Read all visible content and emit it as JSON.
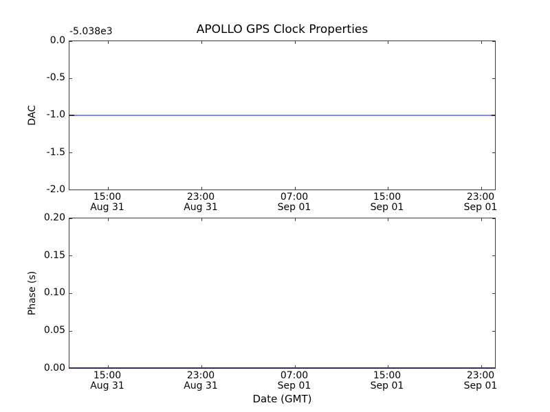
{
  "figure": {
    "title": "APOLLO GPS Clock Properties",
    "background": "#ffffff"
  },
  "top_plot": {
    "ylabel": "DAC",
    "offset_text": "-5.038e3",
    "yticks": [
      "0.0",
      "-0.5",
      "-1.0",
      "-1.5",
      "-2.0"
    ],
    "line_color": "#0000ff",
    "line_value": -1.0
  },
  "bottom_plot": {
    "ylabel": "Phase (s)",
    "xlabel": "Date (GMT)",
    "yticks": [
      "0.20",
      "0.15",
      "0.10",
      "0.05",
      "0.00"
    ],
    "line_color": "#00007f",
    "line_value": 0.0
  },
  "xticks": [
    {
      "time": "15:00",
      "date": "Aug 31"
    },
    {
      "time": "23:00",
      "date": "Aug 31"
    },
    {
      "time": "07:00",
      "date": "Sep 01"
    },
    {
      "time": "15:00",
      "date": "Sep 01"
    },
    {
      "time": "23:00",
      "date": "Sep 01"
    }
  ],
  "chart_data": [
    {
      "type": "line",
      "title": "APOLLO GPS Clock Properties",
      "ylabel": "DAC",
      "y_offset_text": "-5.038e3",
      "ylim": [
        -2.0,
        0.0
      ],
      "yticks": [
        0.0,
        -0.5,
        -1.0,
        -1.5,
        -2.0
      ],
      "x": [
        "Aug 31 15:00",
        "Aug 31 23:00",
        "Sep 01 07:00",
        "Sep 01 15:00",
        "Sep 01 23:00"
      ],
      "series": [
        {
          "name": "DAC",
          "color": "#0000ff",
          "values": [
            -1.0,
            -1.0,
            -1.0,
            -1.0,
            -1.0
          ]
        }
      ],
      "grid": false,
      "legend": false
    },
    {
      "type": "line",
      "ylabel": "Phase (s)",
      "xlabel": "Date (GMT)",
      "ylim": [
        0.0,
        0.2
      ],
      "yticks": [
        0.2,
        0.15,
        0.1,
        0.05,
        0.0
      ],
      "x": [
        "Aug 31 15:00",
        "Aug 31 23:00",
        "Sep 01 07:00",
        "Sep 01 15:00",
        "Sep 01 23:00"
      ],
      "series": [
        {
          "name": "Phase (s)",
          "color": "#00007f",
          "values": [
            0.0,
            0.0,
            0.0,
            0.0,
            0.0
          ]
        }
      ],
      "grid": false,
      "legend": false
    }
  ]
}
